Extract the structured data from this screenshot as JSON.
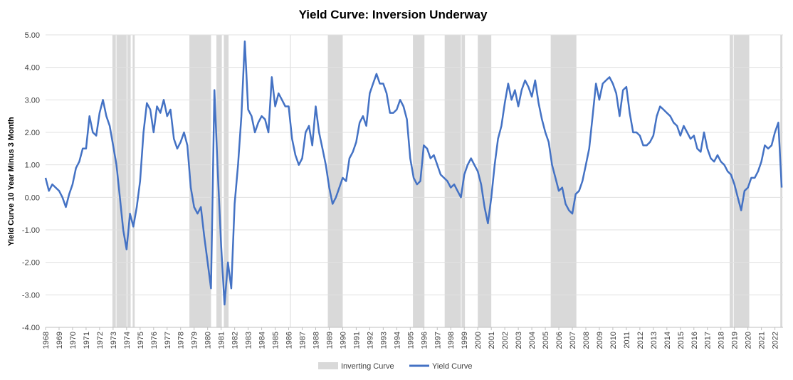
{
  "chart_data": {
    "type": "line",
    "title": "Yield Curve: Inversion Underway",
    "y_label": "Yield Curve  10 Year  Minus 3 Month",
    "xlim": [
      1968,
      2022.6
    ],
    "xticks": [
      1968,
      1969,
      1970,
      1971,
      1972,
      1973,
      1974,
      1975,
      1976,
      1977,
      1978,
      1979,
      1980,
      1981,
      1982,
      1983,
      1984,
      1985,
      1986,
      1987,
      1988,
      1989,
      1990,
      1991,
      1992,
      1993,
      1994,
      1995,
      1996,
      1997,
      1998,
      1999,
      2000,
      2001,
      2002,
      2003,
      2004,
      2005,
      2006,
      2007,
      2008,
      2009,
      2010,
      2011,
      2012,
      2013,
      2014,
      2015,
      2016,
      2017,
      2018,
      2019,
      2020,
      2021,
      2022
    ],
    "ylim": [
      -4,
      5
    ],
    "yticks": [
      {
        "value": 5,
        "label": "5.00"
      },
      {
        "value": 4,
        "label": "4.00"
      },
      {
        "value": 3,
        "label": "3.00"
      },
      {
        "value": 2,
        "label": "2.00"
      },
      {
        "value": 1,
        "label": "1.00"
      },
      {
        "value": 0,
        "label": "0.00"
      },
      {
        "value": -1,
        "label": "-1.00"
      },
      {
        "value": -2,
        "label": "-2.00"
      },
      {
        "value": -3,
        "label": "-3.00"
      },
      {
        "value": -4,
        "label": "-4.00"
      }
    ],
    "grid": true,
    "shade_name": "Inverting Curve",
    "shade_color": "#d9d9d9",
    "shaded_ranges": [
      {
        "start": 1972.95,
        "end": 1973.2
      },
      {
        "start": 1973.25,
        "end": 1974.0
      },
      {
        "start": 1974.05,
        "end": 1974.3
      },
      {
        "start": 1974.45,
        "end": 1974.6
      },
      {
        "start": 1978.65,
        "end": 1980.25
      },
      {
        "start": 1980.65,
        "end": 1981.05
      },
      {
        "start": 1981.2,
        "end": 1981.55
      },
      {
        "start": 1986.1,
        "end": 1986.15
      },
      {
        "start": 1988.9,
        "end": 1990.0
      },
      {
        "start": 1995.2,
        "end": 1996.05
      },
      {
        "start": 1997.55,
        "end": 1998.75
      },
      {
        "start": 1998.8,
        "end": 1999.05
      },
      {
        "start": 2000.0,
        "end": 2001.0
      },
      {
        "start": 2005.4,
        "end": 2007.3
      },
      {
        "start": 2018.65,
        "end": 2018.9
      },
      {
        "start": 2018.95,
        "end": 2020.1
      },
      {
        "start": 2022.4,
        "end": 2022.55
      }
    ],
    "x": [
      1968,
      1968.25,
      1968.5,
      1968.75,
      1969,
      1969.25,
      1969.5,
      1969.75,
      1970,
      1970.25,
      1970.5,
      1970.75,
      1971,
      1971.25,
      1971.5,
      1971.75,
      1972,
      1972.25,
      1972.5,
      1972.75,
      1973,
      1973.25,
      1973.5,
      1973.75,
      1974,
      1974.25,
      1974.5,
      1974.75,
      1975,
      1975.25,
      1975.5,
      1975.75,
      1976,
      1976.25,
      1976.5,
      1976.75,
      1977,
      1977.25,
      1977.5,
      1977.75,
      1978,
      1978.25,
      1978.5,
      1978.75,
      1979,
      1979.25,
      1979.5,
      1979.75,
      1980,
      1980.25,
      1980.5,
      1980.75,
      1981,
      1981.25,
      1981.5,
      1981.75,
      1982,
      1982.25,
      1982.5,
      1982.75,
      1983,
      1983.25,
      1983.5,
      1983.75,
      1984,
      1984.25,
      1984.5,
      1984.75,
      1985,
      1985.25,
      1985.5,
      1985.75,
      1986,
      1986.25,
      1986.5,
      1986.75,
      1987,
      1987.25,
      1987.5,
      1987.75,
      1988,
      1988.25,
      1988.5,
      1988.75,
      1989,
      1989.25,
      1989.5,
      1989.75,
      1990,
      1990.25,
      1990.5,
      1990.75,
      1991,
      1991.25,
      1991.5,
      1991.75,
      1992,
      1992.25,
      1992.5,
      1992.75,
      1993,
      1993.25,
      1993.5,
      1993.75,
      1994,
      1994.25,
      1994.5,
      1994.75,
      1995,
      1995.25,
      1995.5,
      1995.75,
      1996,
      1996.25,
      1996.5,
      1996.75,
      1997,
      1997.25,
      1997.5,
      1997.75,
      1998,
      1998.25,
      1998.5,
      1998.75,
      1999,
      1999.25,
      1999.5,
      1999.75,
      2000,
      2000.25,
      2000.5,
      2000.75,
      2001,
      2001.25,
      2001.5,
      2001.75,
      2002,
      2002.25,
      2002.5,
      2002.75,
      2003,
      2003.25,
      2003.5,
      2003.75,
      2004,
      2004.25,
      2004.5,
      2004.75,
      2005,
      2005.25,
      2005.5,
      2005.75,
      2006,
      2006.25,
      2006.5,
      2006.75,
      2007,
      2007.25,
      2007.5,
      2007.75,
      2008,
      2008.25,
      2008.5,
      2008.75,
      2009,
      2009.25,
      2009.5,
      2009.75,
      2010,
      2010.25,
      2010.5,
      2010.75,
      2011,
      2011.25,
      2011.5,
      2011.75,
      2012,
      2012.25,
      2012.5,
      2012.75,
      2013,
      2013.25,
      2013.5,
      2013.75,
      2014,
      2014.25,
      2014.5,
      2014.75,
      2015,
      2015.25,
      2015.5,
      2015.75,
      2016,
      2016.25,
      2016.5,
      2016.75,
      2017,
      2017.25,
      2017.5,
      2017.75,
      2018,
      2018.25,
      2018.5,
      2018.75,
      2019,
      2019.25,
      2019.5,
      2019.75,
      2020,
      2020.25,
      2020.5,
      2020.75,
      2021,
      2021.25,
      2021.5,
      2021.75,
      2022,
      2022.25,
      2022.5
    ],
    "series": [
      {
        "name": "Yield Curve",
        "color": "#4472c4",
        "values": [
          0.6,
          0.2,
          0.4,
          0.3,
          0.2,
          0.0,
          -0.3,
          0.1,
          0.4,
          0.9,
          1.1,
          1.5,
          1.5,
          2.5,
          2.0,
          1.9,
          2.6,
          3.0,
          2.5,
          2.2,
          1.6,
          1.0,
          0.0,
          -1.0,
          -1.6,
          -0.5,
          -0.9,
          -0.3,
          0.5,
          2.0,
          2.9,
          2.7,
          2.0,
          2.8,
          2.6,
          3.0,
          2.5,
          2.7,
          1.8,
          1.5,
          1.7,
          2.0,
          1.6,
          0.3,
          -0.3,
          -0.5,
          -0.3,
          -1.2,
          -2.0,
          -2.8,
          3.3,
          0.8,
          -1.5,
          -3.3,
          -2.0,
          -2.8,
          -0.2,
          1.0,
          2.5,
          4.8,
          2.7,
          2.5,
          2.0,
          2.3,
          2.5,
          2.4,
          2.0,
          3.7,
          2.8,
          3.2,
          3.0,
          2.8,
          2.8,
          1.8,
          1.3,
          1.0,
          1.2,
          2.0,
          2.2,
          1.6,
          2.8,
          2.0,
          1.5,
          1.0,
          0.3,
          -0.2,
          0.0,
          0.3,
          0.6,
          0.5,
          1.2,
          1.4,
          1.7,
          2.3,
          2.5,
          2.2,
          3.2,
          3.5,
          3.8,
          3.5,
          3.5,
          3.2,
          2.6,
          2.6,
          2.7,
          3.0,
          2.8,
          2.4,
          1.2,
          0.6,
          0.4,
          0.5,
          1.6,
          1.5,
          1.2,
          1.3,
          1.0,
          0.7,
          0.6,
          0.5,
          0.3,
          0.4,
          0.2,
          0.0,
          0.7,
          1.0,
          1.2,
          1.0,
          0.8,
          0.4,
          -0.3,
          -0.8,
          0.0,
          1.0,
          1.8,
          2.2,
          2.9,
          3.5,
          3.0,
          3.3,
          2.8,
          3.3,
          3.6,
          3.4,
          3.1,
          3.6,
          2.9,
          2.4,
          2.0,
          1.7,
          1.0,
          0.6,
          0.2,
          0.3,
          -0.2,
          -0.4,
          -0.5,
          0.1,
          0.2,
          0.5,
          1.0,
          1.5,
          2.5,
          3.5,
          3.0,
          3.5,
          3.6,
          3.7,
          3.5,
          3.2,
          2.5,
          3.3,
          3.4,
          2.6,
          2.0,
          2.0,
          1.9,
          1.6,
          1.6,
          1.7,
          1.9,
          2.5,
          2.8,
          2.7,
          2.6,
          2.5,
          2.3,
          2.2,
          1.9,
          2.2,
          2.0,
          1.8,
          1.9,
          1.5,
          1.4,
          2.0,
          1.5,
          1.2,
          1.1,
          1.3,
          1.1,
          1.0,
          0.8,
          0.7,
          0.4,
          0.0,
          -0.4,
          0.2,
          0.3,
          0.6,
          0.6,
          0.8,
          1.1,
          1.6,
          1.5,
          1.6,
          2.0,
          2.3,
          0.3
        ]
      }
    ]
  }
}
